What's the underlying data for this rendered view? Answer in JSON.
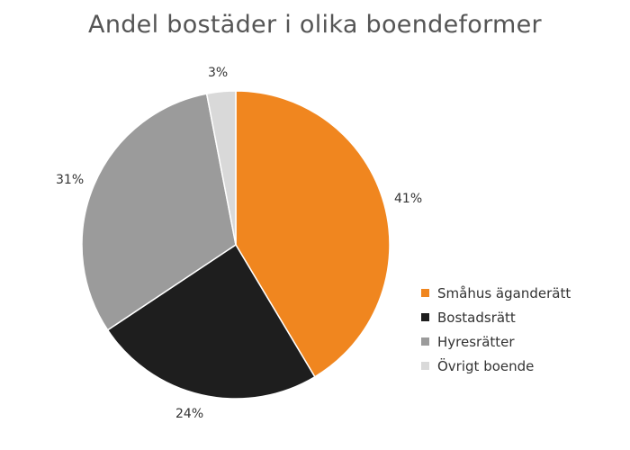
{
  "chart_data": {
    "type": "pie",
    "title": "Andel bostäder i olika boendeformer",
    "categories": [
      "Småhus äganderätt",
      "Bostadsrätt",
      "Hyresrätter",
      "Övrigt boende"
    ],
    "values": [
      41,
      24,
      31,
      3
    ],
    "value_labels": [
      "41%",
      "24%",
      "31%",
      "3%"
    ],
    "colors": [
      "#f0861f",
      "#1e1e1e",
      "#9b9b9b",
      "#d9d9d9"
    ],
    "start_angle_deg": 0,
    "direction": "clockwise",
    "legend_position": "right"
  },
  "title": "Andel bostäder i olika boendeformer",
  "labels": {
    "smahus": "41%",
    "bostadsratt": "24%",
    "hyresratter": "31%",
    "ovrigt": "3%"
  },
  "legend": [
    {
      "label": "Småhus äganderätt",
      "color": "#f0861f"
    },
    {
      "label": "Bostadsrätt",
      "color": "#1e1e1e"
    },
    {
      "label": "Hyresrätter",
      "color": "#9b9b9b"
    },
    {
      "label": "Övrigt boende",
      "color": "#d9d9d9"
    }
  ]
}
